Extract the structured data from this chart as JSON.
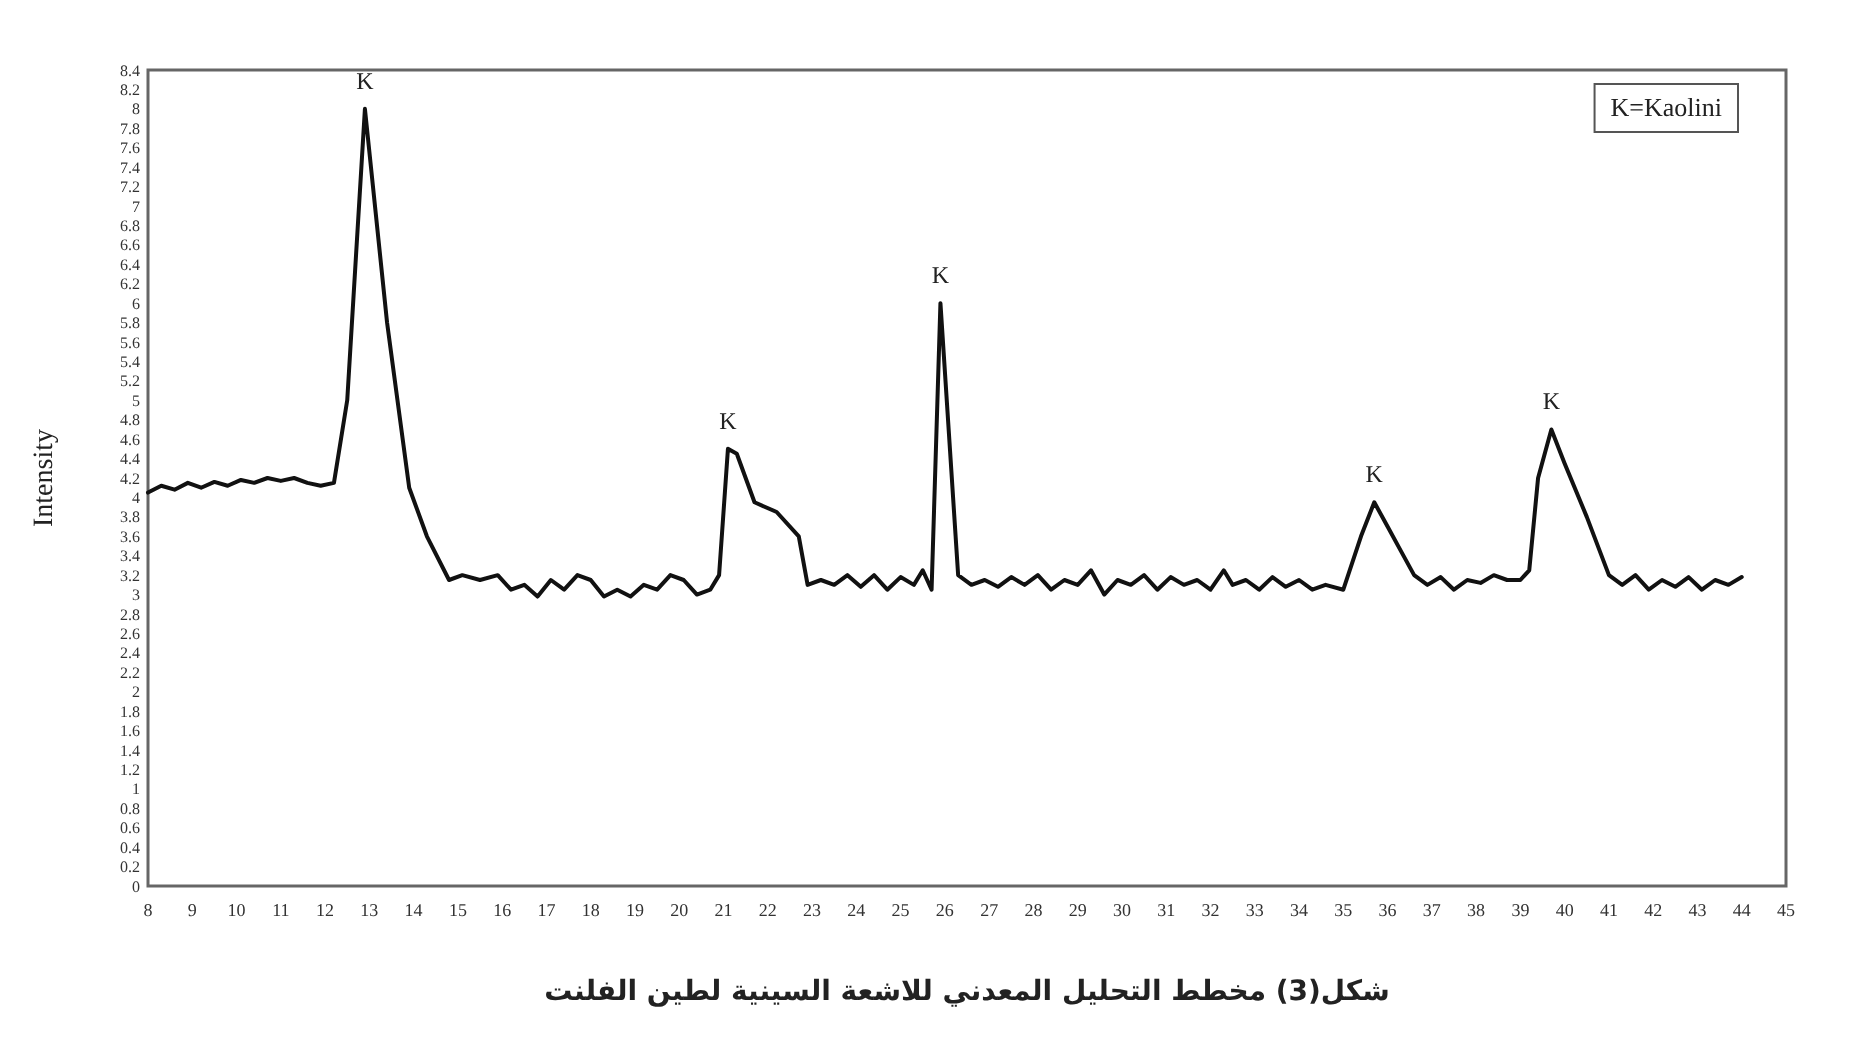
{
  "chart_data": {
    "type": "line",
    "xlabel": "شكل(3)    مخطط التحليل المعدني للاشعة السينية لطين الفلنت",
    "ylabel": "Intensity",
    "xlim": [
      8,
      45
    ],
    "ylim": [
      0,
      8.4
    ],
    "xticks": [
      8,
      9,
      10,
      11,
      12,
      13,
      14,
      15,
      16,
      17,
      18,
      19,
      20,
      21,
      22,
      23,
      24,
      25,
      26,
      27,
      28,
      29,
      30,
      31,
      32,
      33,
      34,
      35,
      36,
      37,
      38,
      39,
      40,
      41,
      42,
      43,
      44,
      45
    ],
    "yticks": [
      0,
      0.2,
      0.4,
      0.6,
      0.8,
      1,
      1.2,
      1.4,
      1.6,
      1.8,
      2,
      2.2,
      2.4,
      2.6,
      2.8,
      3,
      3.2,
      3.4,
      3.6,
      3.8,
      4,
      4.2,
      4.4,
      4.6,
      4.8,
      5,
      5.2,
      5.4,
      5.6,
      5.8,
      6,
      6.2,
      6.4,
      6.6,
      6.8,
      7,
      7.2,
      7.4,
      7.6,
      7.8,
      8,
      8.2,
      8.4
    ],
    "grid": false,
    "marker": "none",
    "line_style": "solid",
    "series": [
      {
        "color": "#111111",
        "x": [
          8.0,
          8.3,
          8.6,
          8.9,
          9.2,
          9.5,
          9.8,
          10.1,
          10.4,
          10.7,
          11.0,
          11.3,
          11.6,
          11.9,
          12.2,
          12.5,
          12.9,
          13.4,
          13.9,
          14.3,
          14.8,
          15.1,
          15.5,
          15.9,
          16.2,
          16.5,
          16.8,
          17.1,
          17.4,
          17.7,
          18.0,
          18.3,
          18.6,
          18.9,
          19.2,
          19.5,
          19.8,
          20.1,
          20.4,
          20.7,
          20.9,
          21.1,
          21.3,
          21.7,
          22.2,
          22.7,
          22.9,
          23.2,
          23.5,
          23.8,
          24.1,
          24.4,
          24.7,
          25.0,
          25.3,
          25.5,
          25.7,
          25.9,
          26.3,
          26.6,
          26.9,
          27.2,
          27.5,
          27.8,
          28.1,
          28.4,
          28.7,
          29.0,
          29.3,
          29.6,
          29.9,
          30.2,
          30.5,
          30.8,
          31.1,
          31.4,
          31.7,
          32.0,
          32.3,
          32.5,
          32.8,
          33.1,
          33.4,
          33.7,
          34.0,
          34.3,
          34.6,
          35.0,
          35.4,
          35.7,
          36.0,
          36.3,
          36.6,
          36.9,
          37.2,
          37.5,
          37.8,
          38.1,
          38.4,
          38.7,
          39.0,
          39.2,
          39.4,
          39.7,
          40.0,
          40.5,
          41.0,
          41.3,
          41.6,
          41.9,
          42.2,
          42.5,
          42.8,
          43.1,
          43.4,
          43.7,
          44.0
        ],
        "values": [
          4.05,
          4.12,
          4.08,
          4.15,
          4.1,
          4.16,
          4.12,
          4.18,
          4.15,
          4.2,
          4.17,
          4.2,
          4.15,
          4.12,
          4.15,
          5.0,
          8.0,
          5.8,
          4.1,
          3.6,
          3.15,
          3.2,
          3.15,
          3.2,
          3.05,
          3.1,
          2.98,
          3.15,
          3.05,
          3.2,
          3.15,
          2.98,
          3.05,
          2.98,
          3.1,
          3.05,
          3.2,
          3.15,
          3.0,
          3.05,
          3.2,
          4.5,
          4.45,
          3.95,
          3.85,
          3.6,
          3.1,
          3.15,
          3.1,
          3.2,
          3.08,
          3.2,
          3.05,
          3.18,
          3.1,
          3.25,
          3.05,
          6.0,
          3.2,
          3.1,
          3.15,
          3.08,
          3.18,
          3.1,
          3.2,
          3.05,
          3.15,
          3.1,
          3.25,
          3.0,
          3.15,
          3.1,
          3.2,
          3.05,
          3.18,
          3.1,
          3.15,
          3.05,
          3.25,
          3.1,
          3.15,
          3.05,
          3.18,
          3.08,
          3.15,
          3.05,
          3.1,
          3.05,
          3.6,
          3.95,
          3.7,
          3.45,
          3.2,
          3.1,
          3.18,
          3.05,
          3.15,
          3.12,
          3.2,
          3.15,
          3.15,
          3.25,
          4.2,
          4.7,
          4.35,
          3.8,
          3.2,
          3.1,
          3.2,
          3.05,
          3.15,
          3.08,
          3.18,
          3.05,
          3.15,
          3.1,
          3.18
        ]
      }
    ],
    "annotations": [
      "K=Kaolini",
      {
        "text": "K",
        "x": 12.9,
        "y": 8.0
      },
      {
        "text": "K",
        "x": 21.1,
        "y": 4.5
      },
      {
        "text": "K",
        "x": 25.9,
        "y": 6.0
      },
      {
        "text": "K",
        "x": 35.7,
        "y": 3.95
      },
      {
        "text": "K",
        "x": 39.7,
        "y": 4.7
      }
    ]
  }
}
